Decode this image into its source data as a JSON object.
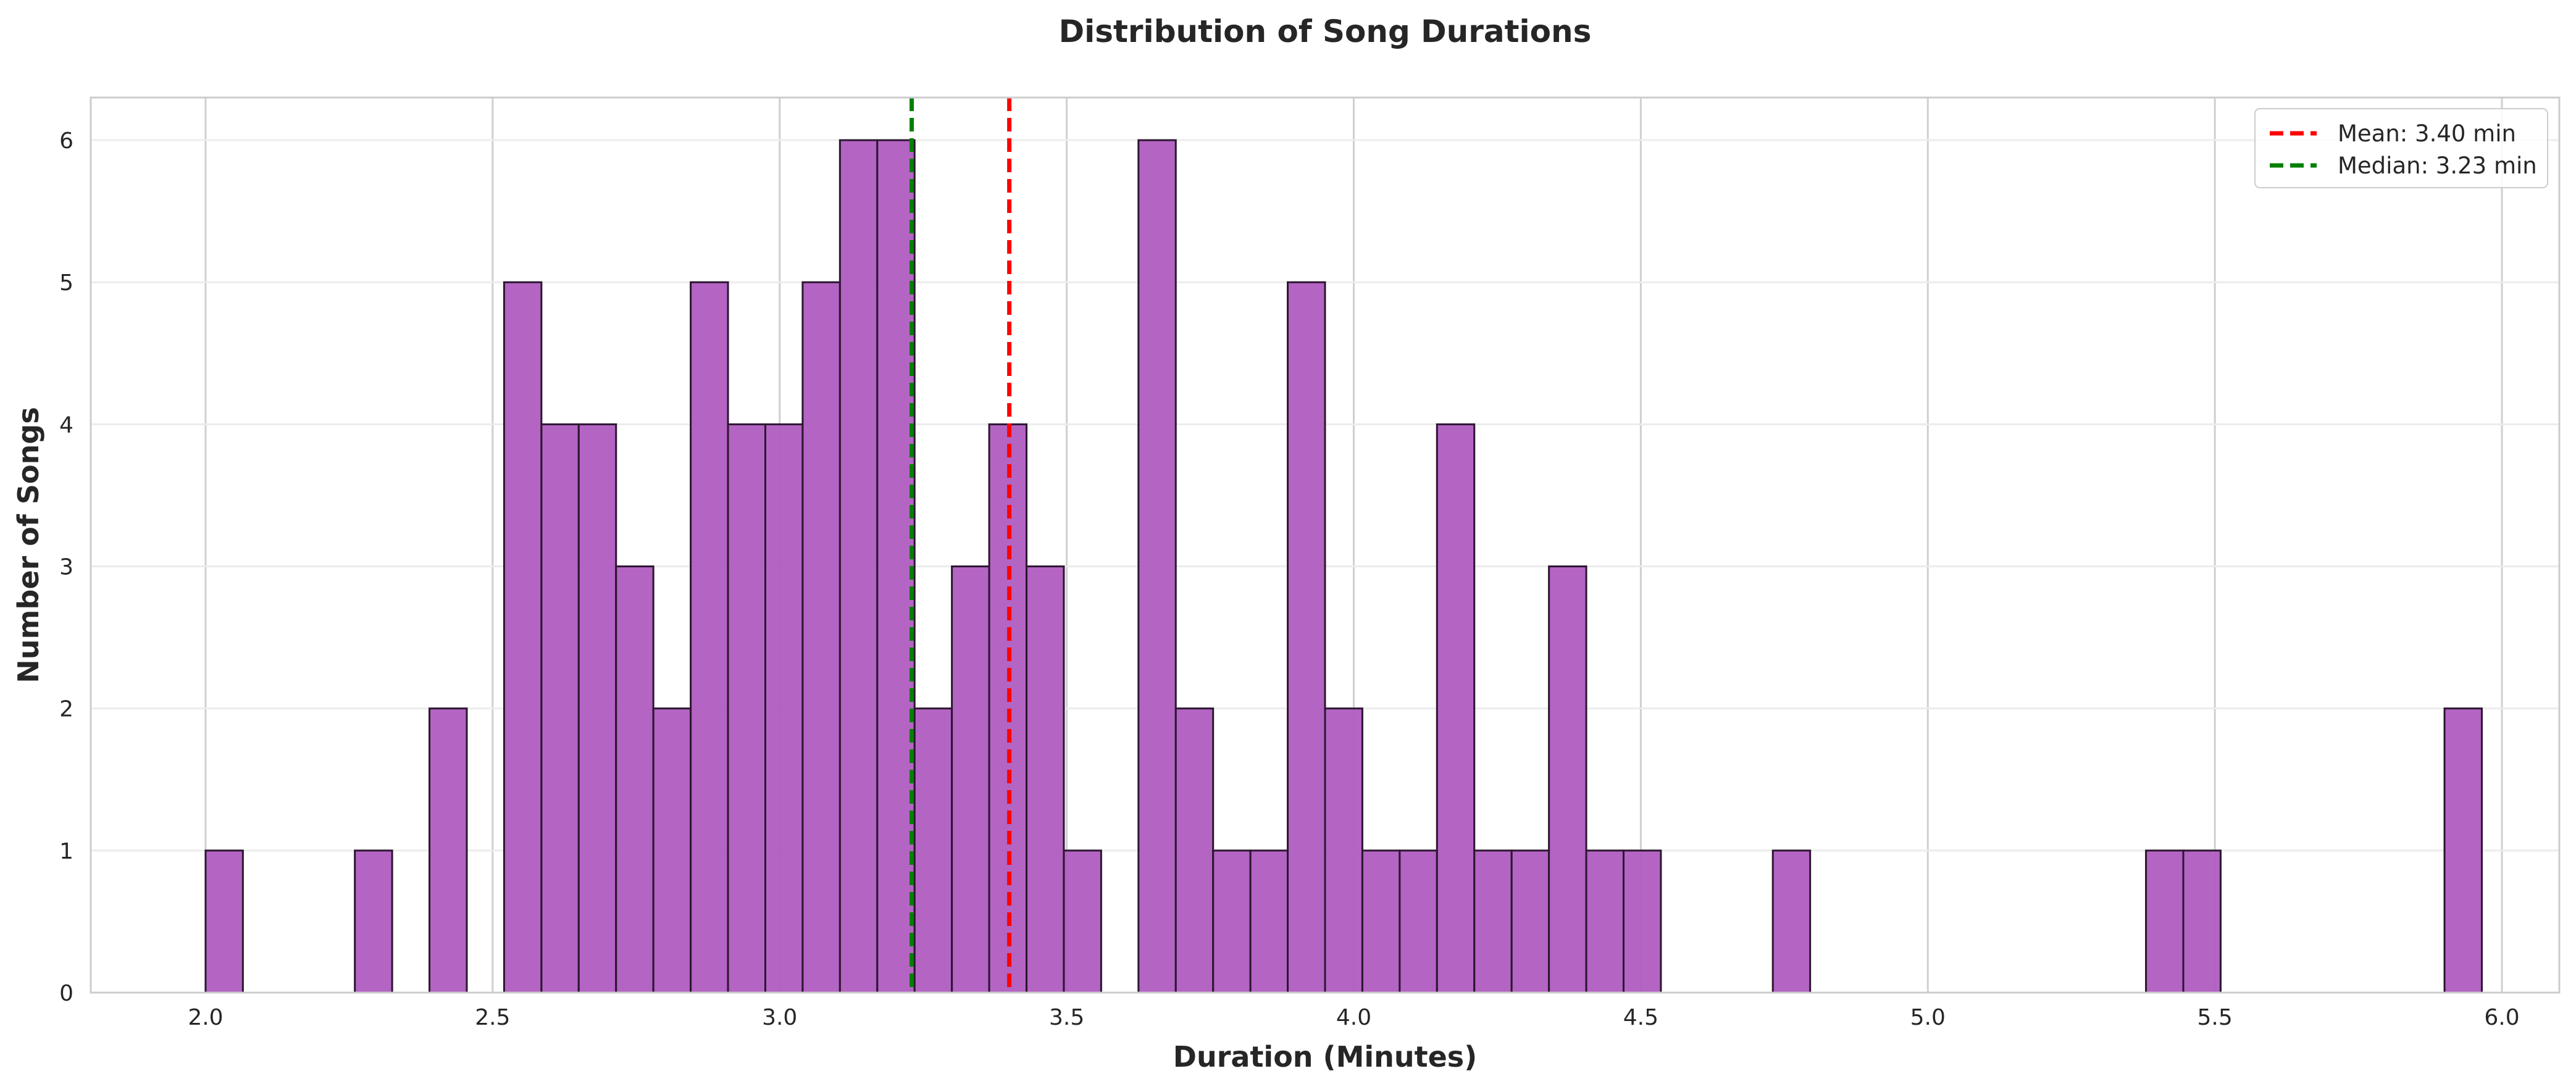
{
  "chart_data": {
    "type": "bar",
    "title": "Distribution of Song Durations",
    "xlabel": "Duration (Minutes)",
    "ylabel": "Number of Songs",
    "xlim": [
      1.8,
      6.1
    ],
    "ylim": [
      0,
      6.3
    ],
    "x_ticks": [
      "2.0",
      "2.5",
      "3.0",
      "3.5",
      "4.0",
      "4.5",
      "5.0",
      "5.5",
      "6.0"
    ],
    "y_ticks": [
      "0",
      "1",
      "2",
      "3",
      "4",
      "5",
      "6"
    ],
    "bin_start": 2.0,
    "bin_width": 0.065,
    "counts": [
      1,
      0,
      0,
      0,
      1,
      0,
      2,
      0,
      5,
      4,
      4,
      3,
      2,
      5,
      4,
      4,
      5,
      6,
      6,
      2,
      3,
      4,
      3,
      1,
      0,
      6,
      2,
      1,
      1,
      5,
      2,
      1,
      1,
      4,
      1,
      1,
      3,
      1,
      1,
      0,
      0,
      0,
      1,
      0,
      0,
      0,
      0,
      0,
      0,
      0,
      0,
      0,
      1,
      1,
      0,
      0,
      0,
      0,
      0,
      0,
      2
    ],
    "bar_color": "#b05cc0",
    "edge_color": "#2b1630",
    "grid": true,
    "mean": {
      "value": 3.4,
      "color": "#ff0000",
      "label": "Mean: 3.40 min"
    },
    "median": {
      "value": 3.23,
      "color": "#008000",
      "label": "Median: 3.23 min"
    },
    "legend_position": "top-right"
  }
}
